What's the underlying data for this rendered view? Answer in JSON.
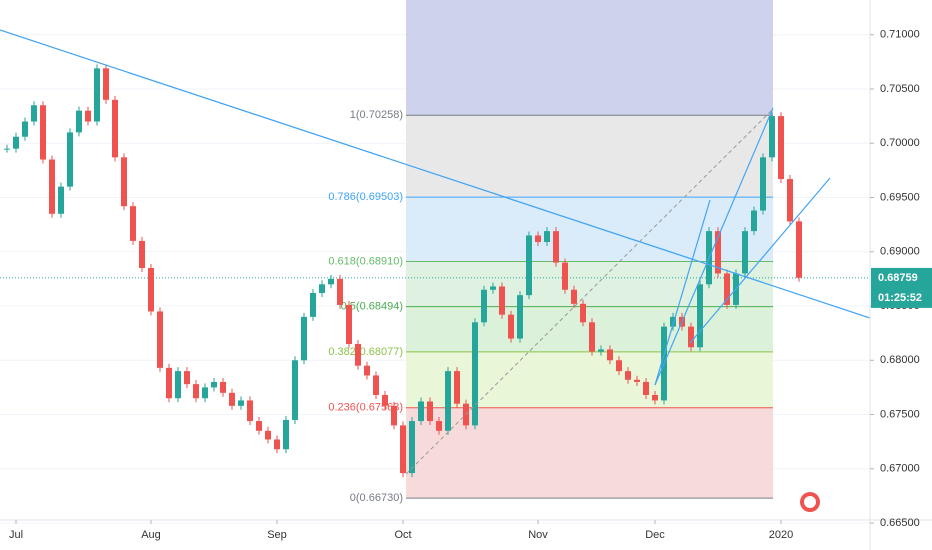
{
  "chart_data": {
    "type": "candlestick",
    "up_color": "#26a69a",
    "down_color": "#ef5350",
    "ylim": [
      0.66528,
      0.7132
    ],
    "yticks": [
      {
        "value": 0.665,
        "label": "0.66500"
      },
      {
        "value": 0.67,
        "label": "0.67000"
      },
      {
        "value": 0.675,
        "label": "0.67500"
      },
      {
        "value": 0.68,
        "label": "0.68000"
      },
      {
        "value": 0.685,
        "label": "0.68500"
      },
      {
        "value": 0.69,
        "label": "0.69000"
      },
      {
        "value": 0.695,
        "label": "0.69500"
      },
      {
        "value": 0.7,
        "label": "0.70000"
      },
      {
        "value": 0.705,
        "label": "0.70500"
      },
      {
        "value": 0.71,
        "label": "0.71000"
      }
    ],
    "grid": true,
    "categories": [
      null,
      "Jul",
      null,
      null,
      null,
      null,
      null,
      null,
      null,
      null,
      null,
      null,
      null,
      null,
      null,
      null,
      "Aug",
      null,
      null,
      null,
      null,
      null,
      null,
      null,
      null,
      null,
      null,
      null,
      null,
      null,
      "Sep",
      null,
      null,
      null,
      null,
      null,
      null,
      null,
      null,
      null,
      null,
      null,
      null,
      null,
      "Oct",
      null,
      null,
      null,
      null,
      null,
      null,
      null,
      null,
      null,
      null,
      null,
      null,
      null,
      null,
      "Nov",
      null,
      null,
      null,
      null,
      null,
      null,
      null,
      null,
      null,
      null,
      null,
      null,
      "Dec",
      null,
      null,
      null,
      null,
      null,
      null,
      null,
      null,
      null,
      null,
      null,
      null,
      null,
      "2020",
      null,
      null
    ],
    "values": [
      0.6995,
      0.7006,
      0.702,
      0.7035,
      0.6985,
      0.6935,
      0.696,
      0.701,
      0.703,
      0.702,
      0.7069,
      0.704,
      0.6987,
      0.6942,
      0.691,
      0.6885,
      0.6845,
      0.6793,
      0.6765,
      0.679,
      0.6778,
      0.6765,
      0.6775,
      0.678,
      0.677,
      0.6758,
      0.6763,
      0.6744,
      0.6735,
      0.6727,
      0.6718,
      0.6745,
      0.68,
      0.684,
      0.6862,
      0.687,
      0.6875,
      0.6851,
      0.6815,
      0.6795,
      0.6786,
      0.6768,
      0.6758,
      0.674,
      0.6696,
      0.6744,
      0.6762,
      0.6744,
      0.6735,
      0.679,
      0.676,
      0.674,
      0.6835,
      0.6865,
      0.6868,
      0.6842,
      0.682,
      0.686,
      0.6915,
      0.6909,
      0.6919,
      0.689,
      0.6865,
      0.6852,
      0.6835,
      0.6808,
      0.681,
      0.68,
      0.679,
      0.6782,
      0.678,
      0.6768,
      0.6763,
      0.6831,
      0.684,
      0.6831,
      0.6812,
      0.687,
      0.6919,
      0.688,
      0.6851,
      0.688,
      0.6919,
      0.6938,
      0.6987,
      0.7025,
      0.6967,
      0.6928,
      0.6876
    ],
    "fib": {
      "top_fill": "#c5cae9",
      "levels": [
        {
          "value": 0.70258,
          "label": "1(0.70258)",
          "color": "#787b86",
          "fill": "#e6e6e6"
        },
        {
          "value": 0.69503,
          "label": "0.786(0.69503)",
          "color": "#42a5f5",
          "fill": "#d6e9f8"
        },
        {
          "value": 0.6891,
          "label": "0.618(0.68910)",
          "color": "#66bb6a",
          "fill": "#dcf0dd"
        },
        {
          "value": 0.68494,
          "label": "0.5(0.68494)",
          "color": "#4caf50",
          "fill": "#d8f0d5"
        },
        {
          "value": 0.68077,
          "label": "0.382(0.68077)",
          "color": "#8bc34a",
          "fill": "#e8f5d4"
        },
        {
          "value": 0.67563,
          "label": "0.236(0.67563)",
          "color": "#ef5350",
          "fill": "#f6d7d7"
        },
        {
          "value": 0.6673,
          "label": "0(0.66730)",
          "color": "#787b86",
          "fill": "none"
        }
      ]
    },
    "last_price": {
      "value": 0.68759,
      "label": "0.68759"
    },
    "countdown": "01:25:52"
  }
}
